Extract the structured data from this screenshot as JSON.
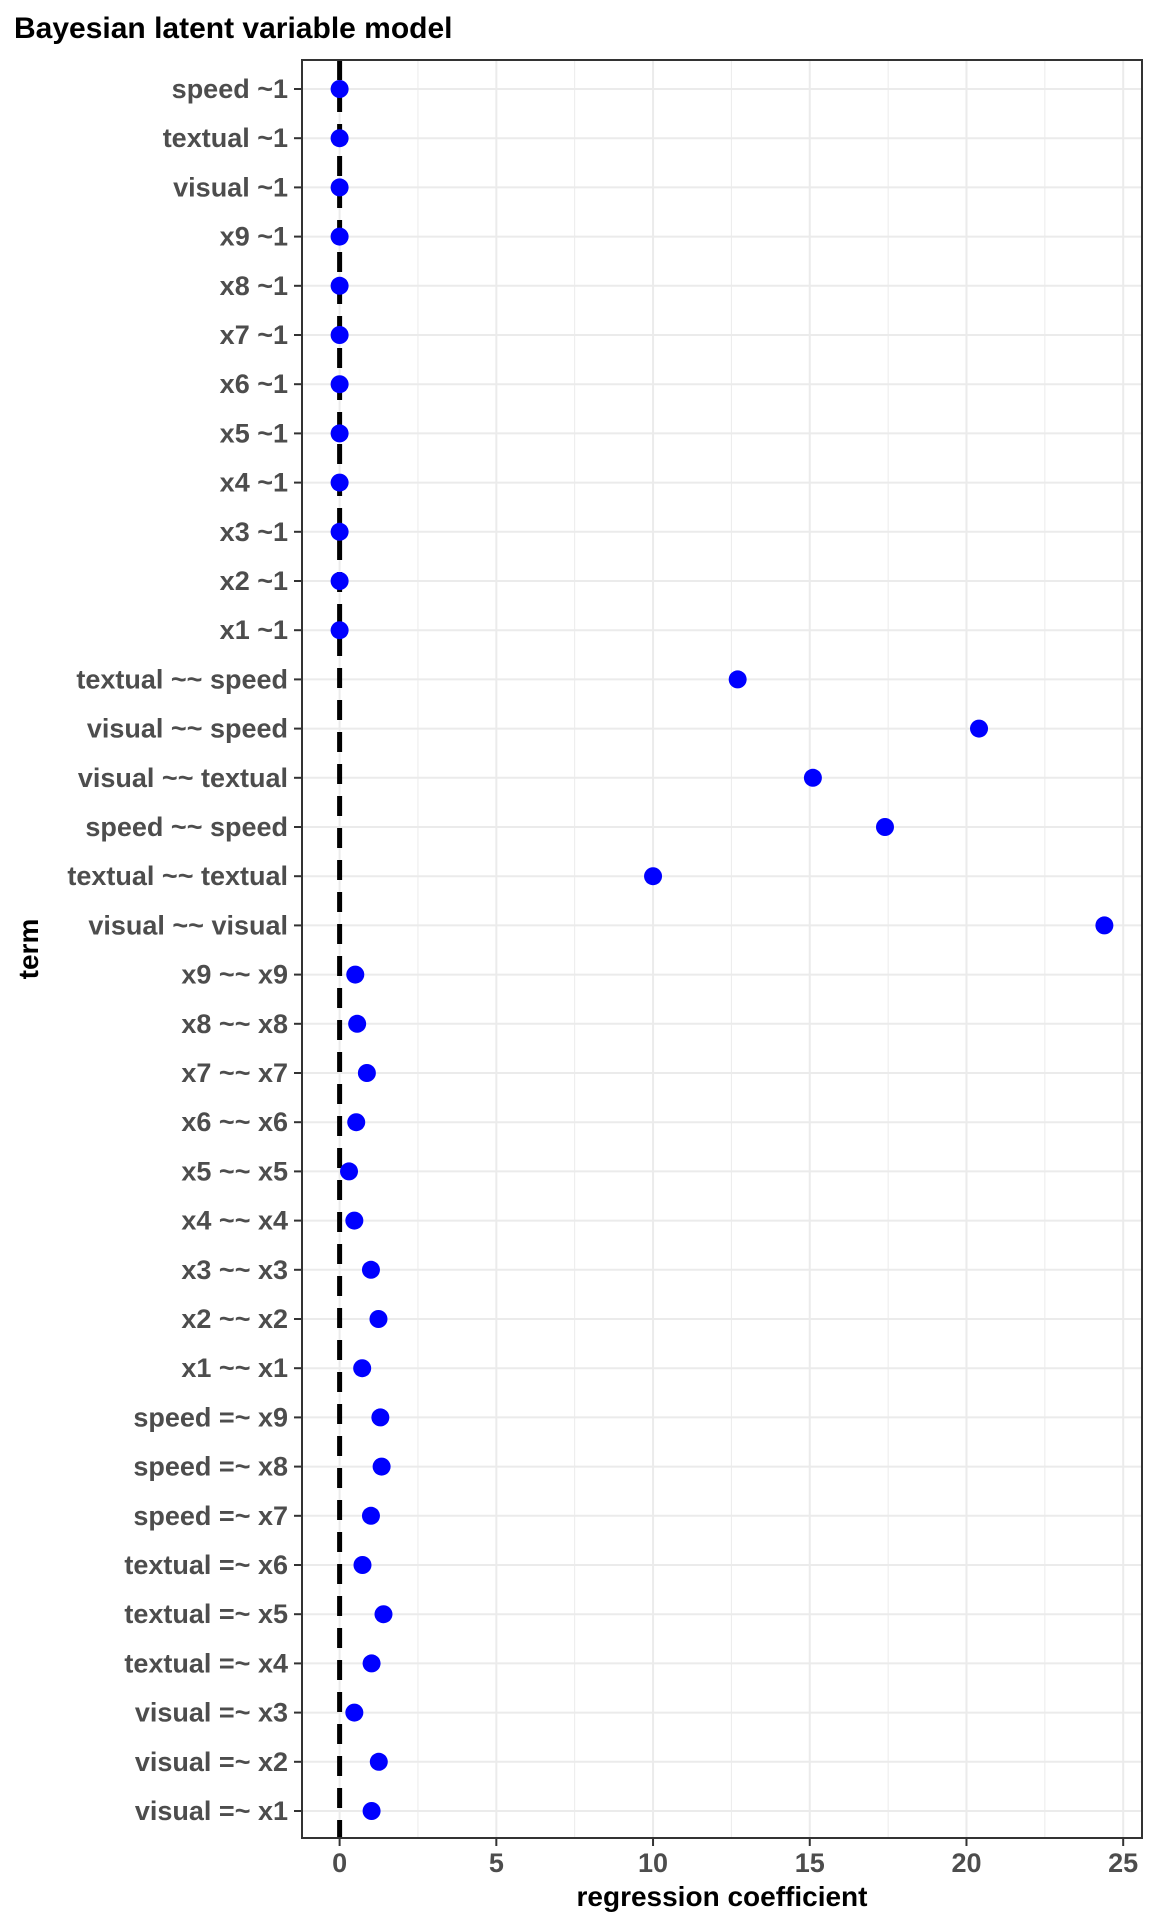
{
  "chart_data": {
    "type": "scatter",
    "title": "Bayesian latent variable model",
    "xlabel": "regression coefficient",
    "ylabel": "term",
    "xlim": [
      -1.2,
      25.6
    ],
    "xticks": [
      0,
      5,
      10,
      15,
      20,
      25
    ],
    "grid": true,
    "reference_line": {
      "x": 0,
      "style": "dashed",
      "color": "#000000"
    },
    "point_color": "#0000ff",
    "categories": [
      "speed ~1",
      "textual ~1",
      "visual ~1",
      "x9 ~1",
      "x8 ~1",
      "x7 ~1",
      "x6 ~1",
      "x5 ~1",
      "x4 ~1",
      "x3 ~1",
      "x2 ~1",
      "x1 ~1",
      "textual ~~ speed",
      "visual ~~ speed",
      "visual ~~ textual",
      "speed ~~ speed",
      "textual ~~ textual",
      "visual ~~ visual",
      "x9 ~~ x9",
      "x8 ~~ x8",
      "x7 ~~ x7",
      "x6 ~~ x6",
      "x5 ~~ x5",
      "x4 ~~ x4",
      "x3 ~~ x3",
      "x2 ~~ x2",
      "x1 ~~ x1",
      "speed =~ x9",
      "speed =~ x8",
      "speed =~ x7",
      "textual =~ x6",
      "textual =~ x5",
      "textual =~ x4",
      "visual =~ x3",
      "visual =~ x2",
      "visual =~ x1"
    ],
    "values": [
      0.0,
      0.0,
      0.0,
      0.0,
      0.0,
      0.0,
      0.0,
      0.0,
      0.0,
      0.0,
      0.0,
      0.0,
      12.7,
      20.4,
      15.1,
      17.4,
      10.0,
      24.4,
      0.5,
      0.56,
      0.87,
      0.53,
      0.3,
      0.47,
      1.0,
      1.24,
      0.72,
      1.3,
      1.34,
      1.0,
      0.73,
      1.4,
      1.02,
      0.47,
      1.25,
      1.02
    ]
  }
}
